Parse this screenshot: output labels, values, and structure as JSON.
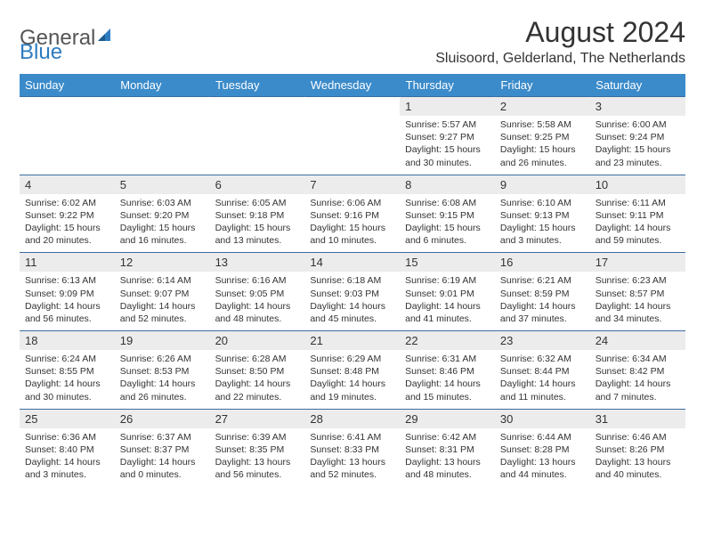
{
  "logo": {
    "part1": "General",
    "part2": "Blue"
  },
  "title": "August 2024",
  "location": "Sluisoord, Gelderland, The Netherlands",
  "colors": {
    "header_bg": "#3b8bca",
    "header_text": "#ffffff",
    "daynum_bg": "#ececec",
    "border": "#3b6ea0",
    "logo_blue": "#2e7cc0"
  },
  "weekdays": [
    "Sunday",
    "Monday",
    "Tuesday",
    "Wednesday",
    "Thursday",
    "Friday",
    "Saturday"
  ],
  "weeks": [
    {
      "nums": [
        "",
        "",
        "",
        "",
        "1",
        "2",
        "3"
      ],
      "cells": [
        null,
        null,
        null,
        null,
        {
          "sr": "Sunrise: 5:57 AM",
          "ss": "Sunset: 9:27 PM",
          "d1": "Daylight: 15 hours",
          "d2": "and 30 minutes."
        },
        {
          "sr": "Sunrise: 5:58 AM",
          "ss": "Sunset: 9:25 PM",
          "d1": "Daylight: 15 hours",
          "d2": "and 26 minutes."
        },
        {
          "sr": "Sunrise: 6:00 AM",
          "ss": "Sunset: 9:24 PM",
          "d1": "Daylight: 15 hours",
          "d2": "and 23 minutes."
        }
      ]
    },
    {
      "nums": [
        "4",
        "5",
        "6",
        "7",
        "8",
        "9",
        "10"
      ],
      "cells": [
        {
          "sr": "Sunrise: 6:02 AM",
          "ss": "Sunset: 9:22 PM",
          "d1": "Daylight: 15 hours",
          "d2": "and 20 minutes."
        },
        {
          "sr": "Sunrise: 6:03 AM",
          "ss": "Sunset: 9:20 PM",
          "d1": "Daylight: 15 hours",
          "d2": "and 16 minutes."
        },
        {
          "sr": "Sunrise: 6:05 AM",
          "ss": "Sunset: 9:18 PM",
          "d1": "Daylight: 15 hours",
          "d2": "and 13 minutes."
        },
        {
          "sr": "Sunrise: 6:06 AM",
          "ss": "Sunset: 9:16 PM",
          "d1": "Daylight: 15 hours",
          "d2": "and 10 minutes."
        },
        {
          "sr": "Sunrise: 6:08 AM",
          "ss": "Sunset: 9:15 PM",
          "d1": "Daylight: 15 hours",
          "d2": "and 6 minutes."
        },
        {
          "sr": "Sunrise: 6:10 AM",
          "ss": "Sunset: 9:13 PM",
          "d1": "Daylight: 15 hours",
          "d2": "and 3 minutes."
        },
        {
          "sr": "Sunrise: 6:11 AM",
          "ss": "Sunset: 9:11 PM",
          "d1": "Daylight: 14 hours",
          "d2": "and 59 minutes."
        }
      ]
    },
    {
      "nums": [
        "11",
        "12",
        "13",
        "14",
        "15",
        "16",
        "17"
      ],
      "cells": [
        {
          "sr": "Sunrise: 6:13 AM",
          "ss": "Sunset: 9:09 PM",
          "d1": "Daylight: 14 hours",
          "d2": "and 56 minutes."
        },
        {
          "sr": "Sunrise: 6:14 AM",
          "ss": "Sunset: 9:07 PM",
          "d1": "Daylight: 14 hours",
          "d2": "and 52 minutes."
        },
        {
          "sr": "Sunrise: 6:16 AM",
          "ss": "Sunset: 9:05 PM",
          "d1": "Daylight: 14 hours",
          "d2": "and 48 minutes."
        },
        {
          "sr": "Sunrise: 6:18 AM",
          "ss": "Sunset: 9:03 PM",
          "d1": "Daylight: 14 hours",
          "d2": "and 45 minutes."
        },
        {
          "sr": "Sunrise: 6:19 AM",
          "ss": "Sunset: 9:01 PM",
          "d1": "Daylight: 14 hours",
          "d2": "and 41 minutes."
        },
        {
          "sr": "Sunrise: 6:21 AM",
          "ss": "Sunset: 8:59 PM",
          "d1": "Daylight: 14 hours",
          "d2": "and 37 minutes."
        },
        {
          "sr": "Sunrise: 6:23 AM",
          "ss": "Sunset: 8:57 PM",
          "d1": "Daylight: 14 hours",
          "d2": "and 34 minutes."
        }
      ]
    },
    {
      "nums": [
        "18",
        "19",
        "20",
        "21",
        "22",
        "23",
        "24"
      ],
      "cells": [
        {
          "sr": "Sunrise: 6:24 AM",
          "ss": "Sunset: 8:55 PM",
          "d1": "Daylight: 14 hours",
          "d2": "and 30 minutes."
        },
        {
          "sr": "Sunrise: 6:26 AM",
          "ss": "Sunset: 8:53 PM",
          "d1": "Daylight: 14 hours",
          "d2": "and 26 minutes."
        },
        {
          "sr": "Sunrise: 6:28 AM",
          "ss": "Sunset: 8:50 PM",
          "d1": "Daylight: 14 hours",
          "d2": "and 22 minutes."
        },
        {
          "sr": "Sunrise: 6:29 AM",
          "ss": "Sunset: 8:48 PM",
          "d1": "Daylight: 14 hours",
          "d2": "and 19 minutes."
        },
        {
          "sr": "Sunrise: 6:31 AM",
          "ss": "Sunset: 8:46 PM",
          "d1": "Daylight: 14 hours",
          "d2": "and 15 minutes."
        },
        {
          "sr": "Sunrise: 6:32 AM",
          "ss": "Sunset: 8:44 PM",
          "d1": "Daylight: 14 hours",
          "d2": "and 11 minutes."
        },
        {
          "sr": "Sunrise: 6:34 AM",
          "ss": "Sunset: 8:42 PM",
          "d1": "Daylight: 14 hours",
          "d2": "and 7 minutes."
        }
      ]
    },
    {
      "nums": [
        "25",
        "26",
        "27",
        "28",
        "29",
        "30",
        "31"
      ],
      "cells": [
        {
          "sr": "Sunrise: 6:36 AM",
          "ss": "Sunset: 8:40 PM",
          "d1": "Daylight: 14 hours",
          "d2": "and 3 minutes."
        },
        {
          "sr": "Sunrise: 6:37 AM",
          "ss": "Sunset: 8:37 PM",
          "d1": "Daylight: 14 hours",
          "d2": "and 0 minutes."
        },
        {
          "sr": "Sunrise: 6:39 AM",
          "ss": "Sunset: 8:35 PM",
          "d1": "Daylight: 13 hours",
          "d2": "and 56 minutes."
        },
        {
          "sr": "Sunrise: 6:41 AM",
          "ss": "Sunset: 8:33 PM",
          "d1": "Daylight: 13 hours",
          "d2": "and 52 minutes."
        },
        {
          "sr": "Sunrise: 6:42 AM",
          "ss": "Sunset: 8:31 PM",
          "d1": "Daylight: 13 hours",
          "d2": "and 48 minutes."
        },
        {
          "sr": "Sunrise: 6:44 AM",
          "ss": "Sunset: 8:28 PM",
          "d1": "Daylight: 13 hours",
          "d2": "and 44 minutes."
        },
        {
          "sr": "Sunrise: 6:46 AM",
          "ss": "Sunset: 8:26 PM",
          "d1": "Daylight: 13 hours",
          "d2": "and 40 minutes."
        }
      ]
    }
  ]
}
